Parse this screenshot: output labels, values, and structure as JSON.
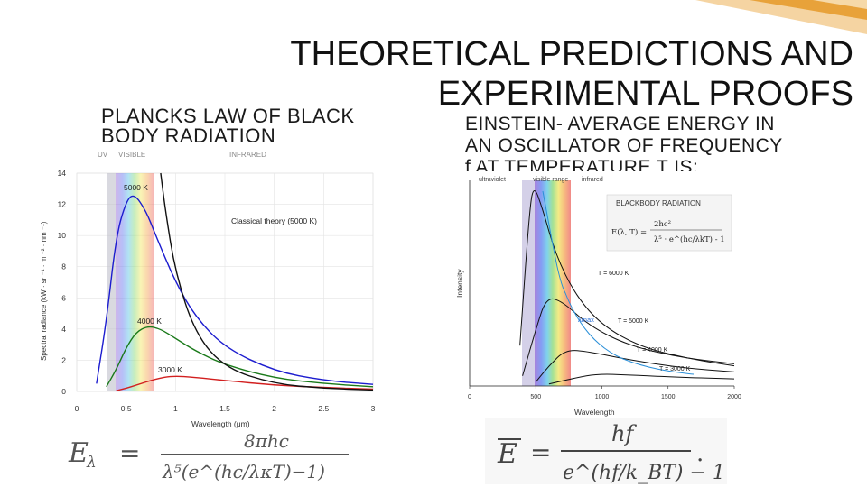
{
  "slide": {
    "title_line1": "THEORETICAL PREDICTIONS AND",
    "title_line2": "EXPERIMENTAL PROOFS",
    "left_heading_line1": "PLANCKS LAW OF BLACK",
    "left_heading_line2": "BODY RADIATION",
    "right_heading_line1": "EINSTEIN- AVERAGE ENERGY IN",
    "right_heading_line2": "AN OSCILLATOR OF FREQUENCY",
    "right_heading_line3": "f AT TEMPERATURE T IS:",
    "accent_color": "#e8a23a"
  },
  "left_chart": {
    "band_uv": "UV",
    "band_visible": "VISIBLE",
    "band_infrared": "INFRARED",
    "xlabel": "Wavelength (μm)",
    "ylabel": "Spectral radiance (kW · sr ⁻¹ · m ⁻² · nm ⁻¹)",
    "curve_5000": "5000 K",
    "curve_4000": "4000 K",
    "curve_3000": "3000 K",
    "curve_classical": "Classical theory (5000 K)",
    "x_ticks": [
      "0",
      "0.5",
      "1",
      "1.5",
      "2",
      "2.5",
      "3"
    ],
    "y_ticks": [
      "0",
      "2",
      "4",
      "6",
      "8",
      "10",
      "12",
      "14"
    ]
  },
  "right_chart": {
    "band_uv": "ultraviolet",
    "band_visible": "visible range",
    "band_infrared": "infrared",
    "box_title": "BLACKBODY RADIATION",
    "ylabel": "Intensity",
    "xlabel": "Wavelength",
    "t6000": "T = 6000 K",
    "t5000": "T = 5000 K",
    "t4000": "T = 4000 K",
    "t3000": "T = 3000 K",
    "lambda_max": "λmax",
    "x_ticks": [
      "0",
      "500",
      "1000",
      "1500",
      "2000"
    ]
  },
  "chart_data": [
    {
      "type": "line",
      "xlabel": "Wavelength (μm)",
      "ylabel": "Spectral radiance (kW · sr ⁻¹ · m ⁻² · nm ⁻¹)",
      "xlim": [
        0,
        3
      ],
      "ylim": [
        0,
        14
      ],
      "grid": true,
      "series": [
        {
          "name": "5000 K",
          "color": "#1c1ccf",
          "x": [
            0.2,
            0.3,
            0.4,
            0.5,
            0.58,
            0.7,
            0.8,
            1.0,
            1.2,
            1.5,
            2.0,
            2.5,
            3.0
          ],
          "y": [
            0.5,
            4.5,
            10.0,
            12.2,
            12.7,
            11.6,
            10.0,
            7.0,
            4.8,
            2.8,
            1.3,
            0.7,
            0.45
          ]
        },
        {
          "name": "4000 K",
          "color": "#1a7a1a",
          "x": [
            0.3,
            0.4,
            0.5,
            0.6,
            0.72,
            0.85,
            1.0,
            1.2,
            1.5,
            2.0,
            2.5,
            3.0
          ],
          "y": [
            0.3,
            1.4,
            2.8,
            3.8,
            4.2,
            4.0,
            3.4,
            2.6,
            1.7,
            0.85,
            0.5,
            0.3
          ]
        },
        {
          "name": "3000 K",
          "color": "#d21f1f",
          "x": [
            0.4,
            0.5,
            0.6,
            0.8,
            0.97,
            1.2,
            1.5,
            2.0,
            2.5,
            3.0
          ],
          "y": [
            0.05,
            0.2,
            0.4,
            0.8,
            1.0,
            0.9,
            0.7,
            0.4,
            0.25,
            0.15
          ]
        },
        {
          "name": "Classical theory (5000 K)",
          "color": "#111111",
          "x": [
            0.85,
            0.9,
            1.0,
            1.2,
            1.5,
            2.0,
            2.5,
            3.0
          ],
          "y": [
            14,
            11.5,
            7.6,
            3.7,
            1.5,
            0.48,
            0.2,
            0.09
          ]
        }
      ]
    },
    {
      "type": "line",
      "xlabel": "Wavelength",
      "ylabel": "Intensity",
      "xlim": [
        0,
        2000
      ],
      "grid": false,
      "series": [
        {
          "name": "T = 6000 K",
          "color": "#111111",
          "x": [
            380,
            450,
            483,
            550,
            650,
            800,
            1000,
            1300,
            1700,
            2000
          ],
          "y": [
            0.2,
            0.85,
            1.0,
            0.88,
            0.65,
            0.45,
            0.3,
            0.19,
            0.13,
            0.1
          ]
        },
        {
          "name": "T = 5000 K",
          "color": "#111111",
          "x": [
            400,
            500,
            580,
            700,
            900,
            1200,
            1600,
            2000
          ],
          "y": [
            0.05,
            0.28,
            0.44,
            0.42,
            0.3,
            0.2,
            0.14,
            0.11
          ]
        },
        {
          "name": "T = 4000 K",
          "color": "#111111",
          "x": [
            500,
            600,
            725,
            900,
            1200,
            1600,
            2000
          ],
          "y": [
            0.02,
            0.1,
            0.18,
            0.17,
            0.13,
            0.09,
            0.07
          ]
        },
        {
          "name": "T = 3000 K",
          "color": "#111111",
          "x": [
            600,
            800,
            966,
            1200,
            1500,
            2000
          ],
          "y": [
            0.01,
            0.04,
            0.06,
            0.055,
            0.045,
            0.035
          ]
        }
      ]
    }
  ]
}
